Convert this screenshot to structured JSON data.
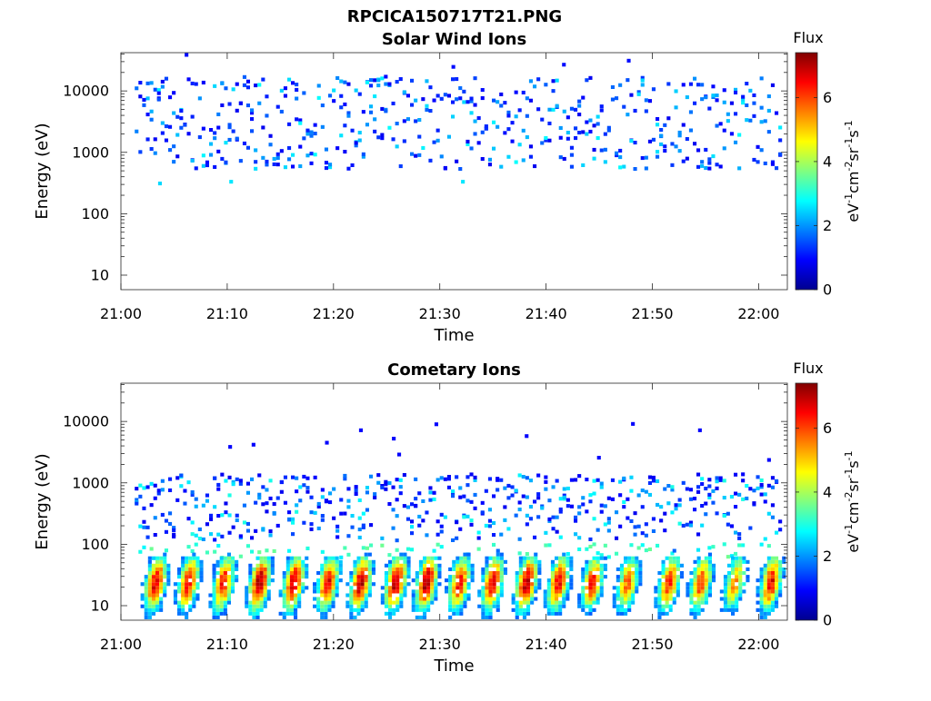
{
  "figure": {
    "filename_title": "RPCICA150717T21.PNG"
  },
  "colorbar": {
    "title": "Flux",
    "label_parts": [
      "eV",
      "-1",
      "cm",
      "-2",
      "sr",
      "-1",
      "s",
      "-1"
    ],
    "ticks": [
      "0",
      "2",
      "4",
      "6"
    ],
    "range": [
      0,
      7.4
    ],
    "colormap": "jet",
    "colors": [
      "#00008f",
      "#0000ff",
      "#0080ff",
      "#00ffff",
      "#80ff80",
      "#ffff00",
      "#ff8000",
      "#ff0000",
      "#800000"
    ]
  },
  "chart_data": [
    {
      "type": "heatmap",
      "title": "Solar Wind Ions",
      "xlabel": "Time",
      "ylabel": "Energy (eV)",
      "x_ticks": [
        "21:00",
        "21:10",
        "21:20",
        "21:30",
        "21:40",
        "21:50",
        "22:00"
      ],
      "x_tick_minutes": [
        0,
        10,
        20,
        30,
        40,
        50,
        60
      ],
      "xlim_minutes": [
        0,
        62.7
      ],
      "y_scale": "log",
      "y_ticks": [
        "10",
        "100",
        "1000",
        "10000"
      ],
      "y_tick_values": [
        10,
        100,
        1000,
        10000
      ],
      "ylim": [
        5.8,
        42000
      ],
      "flux_range": [
        0,
        7.4
      ],
      "content": {
        "time_span_minutes": [
          1.3,
          62.3
        ],
        "energy_band_eV": [
          500,
          16000
        ],
        "flux_typical": [
          0.8,
          2.8
        ],
        "outliers": [
          {
            "t_min": 3.5,
            "e_eV": 290,
            "flux": 2.5
          },
          {
            "t_min": 10.2,
            "e_eV": 310,
            "flux": 2.6
          },
          {
            "t_min": 32.0,
            "e_eV": 310,
            "flux": 2.6
          },
          {
            "t_min": 6.0,
            "e_eV": 36000,
            "flux": 1.0
          },
          {
            "t_min": 18.9,
            "e_eV": 38000,
            "flux": 1.0
          },
          {
            "t_min": 47.6,
            "e_eV": 29000,
            "flux": 1.0
          },
          {
            "t_min": 41.5,
            "e_eV": 25000,
            "flux": 1.0
          },
          {
            "t_min": 31.1,
            "e_eV": 23000,
            "flux": 1.0
          }
        ]
      }
    },
    {
      "type": "heatmap",
      "title": "Cometary Ions",
      "xlabel": "Time",
      "ylabel": "Energy (eV)",
      "x_ticks": [
        "21:00",
        "21:10",
        "21:20",
        "21:30",
        "21:40",
        "21:50",
        "22:00"
      ],
      "x_tick_minutes": [
        0,
        10,
        20,
        30,
        40,
        50,
        60
      ],
      "xlim_minutes": [
        0,
        62.7
      ],
      "y_scale": "log",
      "y_ticks": [
        "10",
        "100",
        "1000",
        "10000"
      ],
      "y_tick_values": [
        10,
        100,
        1000,
        10000
      ],
      "ylim": [
        5.8,
        42000
      ],
      "flux_range": [
        0,
        7.4
      ],
      "content": {
        "time_span_minutes": [
          1.3,
          62.3
        ],
        "sparse_band_eV": [
          100,
          1300
        ],
        "sparse_flux_typical": [
          0.8,
          3.0
        ],
        "low_energy_bursts_eV": [
          6,
          130
        ],
        "burst_times_minutes": [
          3.1,
          6.2,
          9.5,
          12.9,
          16.1,
          19.3,
          22.4,
          25.7,
          28.6,
          31.7,
          34.8,
          38.0,
          41.0,
          44.2,
          47.5,
          51.4,
          54.4,
          57.6,
          61.0
        ],
        "burst_peak_flux": [
          6.8,
          6.6,
          6.5,
          7.2,
          6.9,
          6.6,
          7.0,
          7.1,
          7.2,
          6.4,
          6.7,
          7.0,
          6.6,
          6.3,
          5.8,
          6.4,
          6.2,
          5.4,
          6.6
        ],
        "high_energy_points": [
          {
            "t_min": 10.1,
            "e_eV": 3600,
            "flux": 0.9
          },
          {
            "t_min": 12.3,
            "e_eV": 3900,
            "flux": 0.9
          },
          {
            "t_min": 19.2,
            "e_eV": 4200,
            "flux": 0.9
          },
          {
            "t_min": 22.4,
            "e_eV": 6700,
            "flux": 0.9
          },
          {
            "t_min": 25.5,
            "e_eV": 4900,
            "flux": 0.9
          },
          {
            "t_min": 26.0,
            "e_eV": 2700,
            "flux": 0.9
          },
          {
            "t_min": 29.5,
            "e_eV": 8400,
            "flux": 0.9
          },
          {
            "t_min": 38.0,
            "e_eV": 5400,
            "flux": 0.9
          },
          {
            "t_min": 44.8,
            "e_eV": 2400,
            "flux": 0.9
          },
          {
            "t_min": 48.0,
            "e_eV": 8500,
            "flux": 0.9
          },
          {
            "t_min": 54.3,
            "e_eV": 6700,
            "flux": 0.9
          },
          {
            "t_min": 60.8,
            "e_eV": 2200,
            "flux": 0.9
          }
        ]
      }
    }
  ]
}
